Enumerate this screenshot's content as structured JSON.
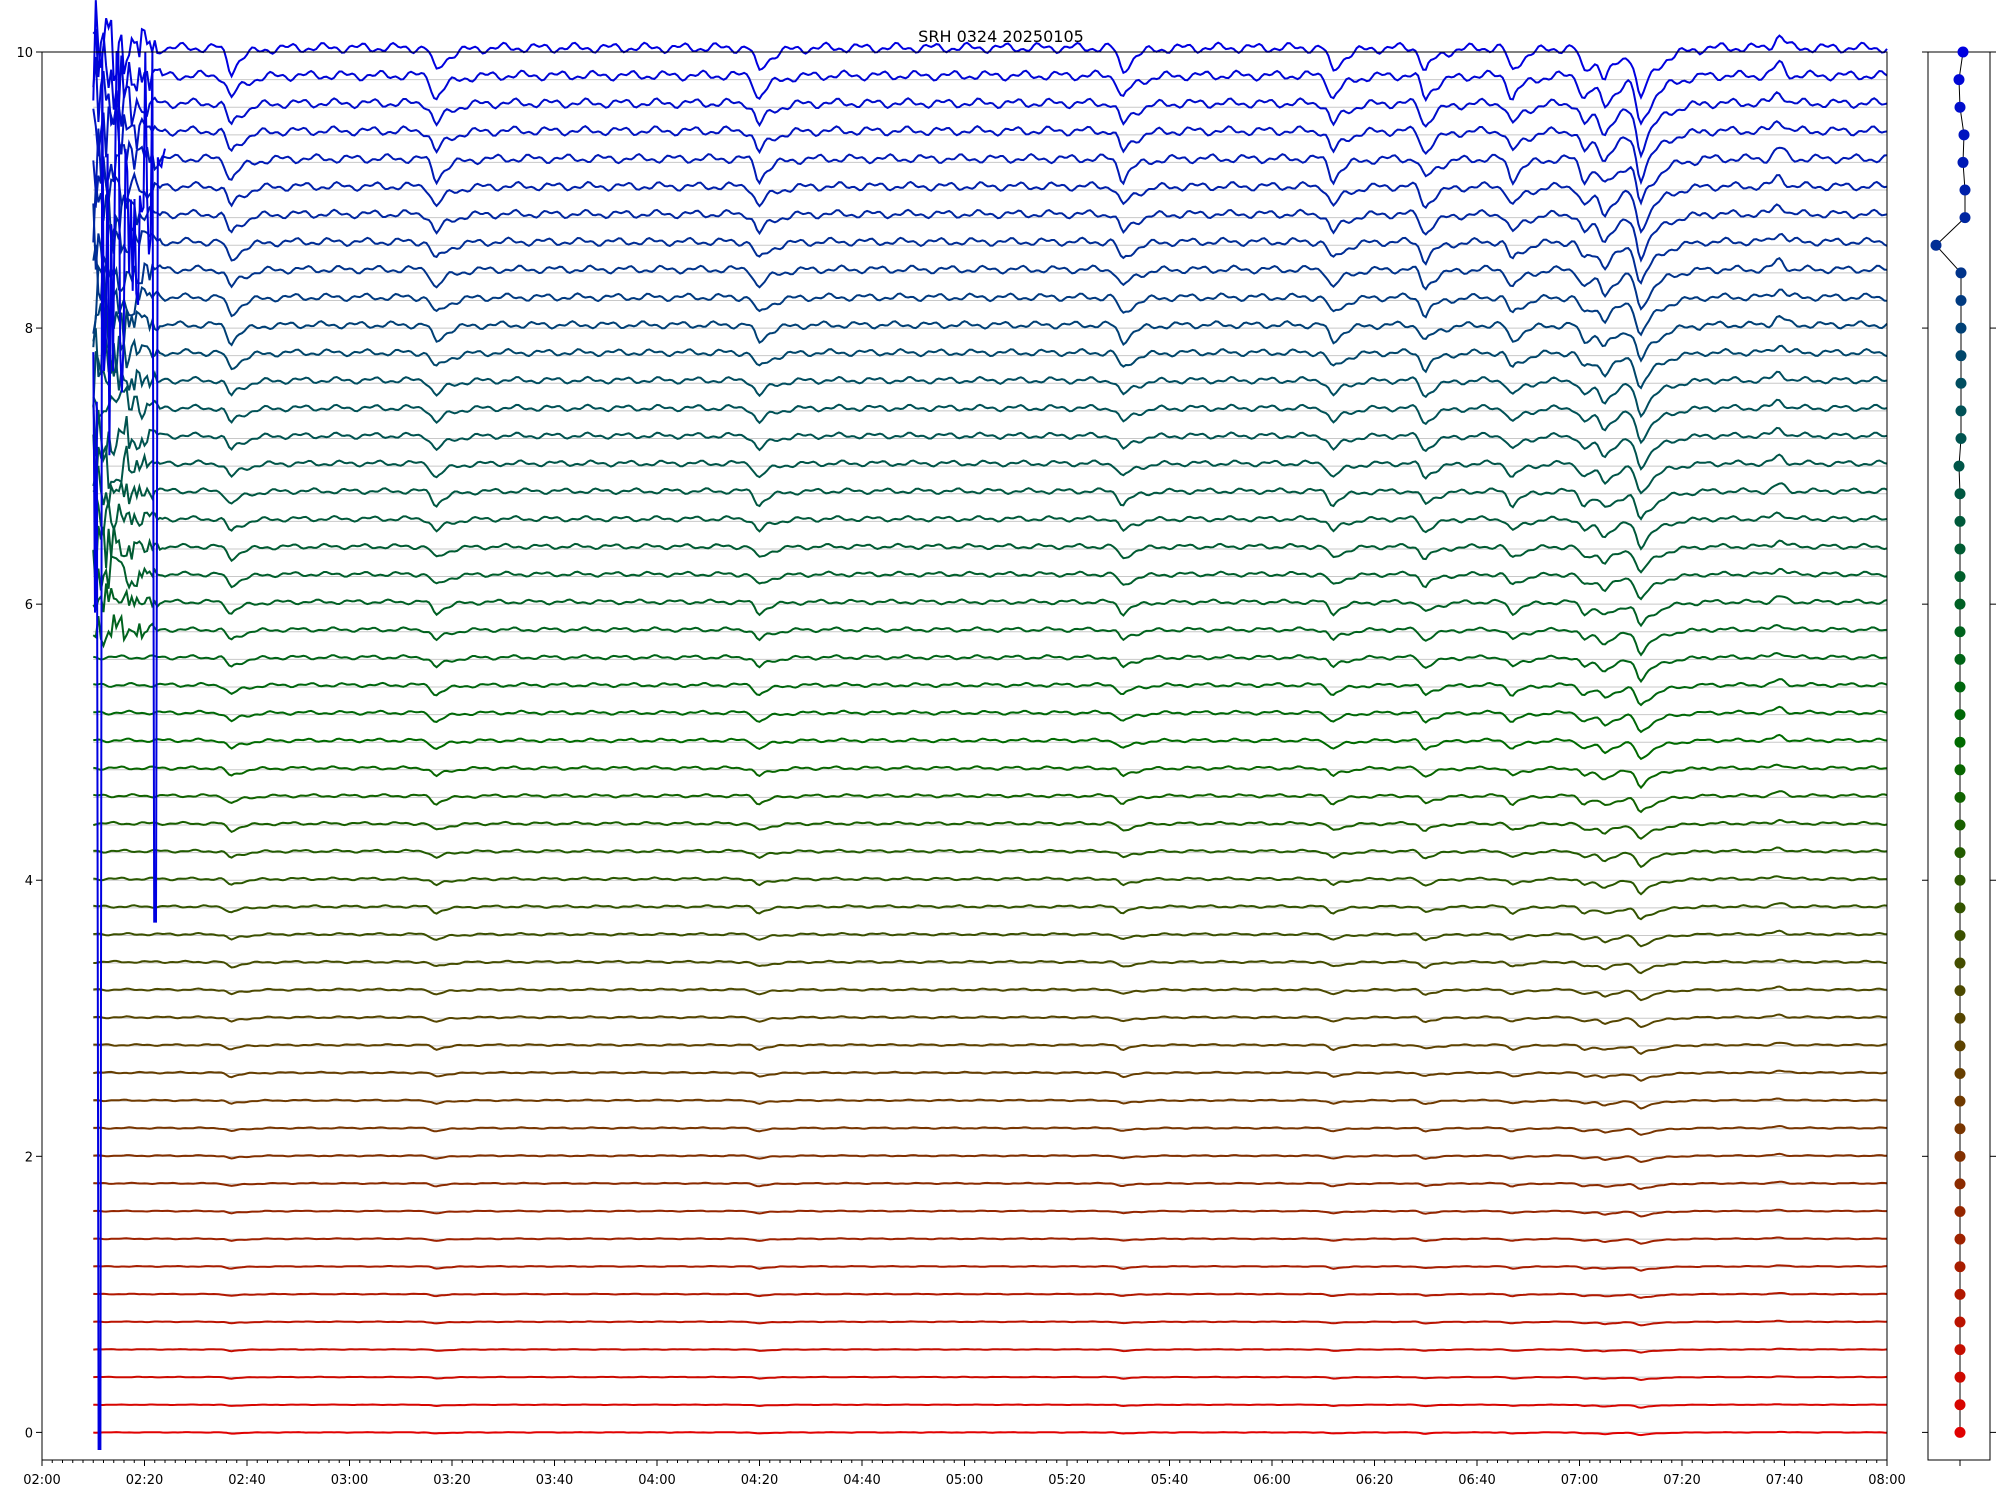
{
  "chart_data": {
    "type": "line",
    "title": "SRH 0324 20250105",
    "xlabel": "",
    "ylabel": "",
    "x_range": [
      "02:00",
      "08:00"
    ],
    "ylim": [
      -0.2,
      10
    ],
    "x_ticks": [
      "02:00",
      "02:20",
      "02:40",
      "03:00",
      "03:20",
      "03:40",
      "04:00",
      "04:20",
      "04:40",
      "05:00",
      "05:20",
      "05:40",
      "06:00",
      "06:20",
      "06:40",
      "07:00",
      "07:20",
      "07:40",
      "08:00"
    ],
    "y_ticks": [
      "0",
      "2",
      "4",
      "6",
      "8",
      "10"
    ],
    "grid": "horizontal lines at each series baseline",
    "series_count": 51,
    "series_spacing": 0.2,
    "data_start": "02:10",
    "data_end": "08:00",
    "color_gradient": [
      "#e00000",
      "#6a3c00",
      "#006a00",
      "#00505a",
      "#0000e0"
    ],
    "common_dips": [
      "02:37",
      "03:17",
      "04:20",
      "05:31",
      "06:12",
      "06:30",
      "06:47",
      "07:01",
      "07:05",
      "07:12"
    ],
    "common_bumps": [
      "07:39"
    ],
    "startup_spikes": {
      "time_range": [
        "02:10",
        "02:24"
      ],
      "max_value": 10,
      "min_value": -0.12
    },
    "side_panel": {
      "type": "scatter",
      "description_values": "per-series baseline markers",
      "x_offsets": [
        0,
        0,
        0,
        0,
        0,
        0,
        0,
        0,
        0,
        0,
        0,
        0,
        0,
        0,
        0,
        0,
        0,
        0,
        0,
        0,
        0,
        0,
        0,
        0,
        0,
        0,
        0,
        0,
        0,
        0,
        0,
        0,
        0,
        0,
        0,
        -0.05,
        0.05,
        0.05,
        0.05,
        0.05,
        0.05,
        0.05,
        0.05,
        -1.2,
        0.25,
        0.25,
        0.15,
        0.2,
        0,
        -0.05,
        0.15
      ],
      "y_values": [
        0,
        0.2,
        0.4,
        0.6,
        0.8,
        1.0,
        1.2,
        1.4,
        1.6,
        1.8,
        2.0,
        2.2,
        2.4,
        2.6,
        2.8,
        3.0,
        3.2,
        3.4,
        3.6,
        3.8,
        4.0,
        4.2,
        4.4,
        4.6,
        4.8,
        5.0,
        5.2,
        5.4,
        5.6,
        5.8,
        6.0,
        6.2,
        6.4,
        6.6,
        6.8,
        7.0,
        7.2,
        7.4,
        7.6,
        7.8,
        8.0,
        8.2,
        8.4,
        8.6,
        8.8,
        9.0,
        9.2,
        9.4,
        9.6,
        9.8,
        10.0
      ]
    }
  }
}
